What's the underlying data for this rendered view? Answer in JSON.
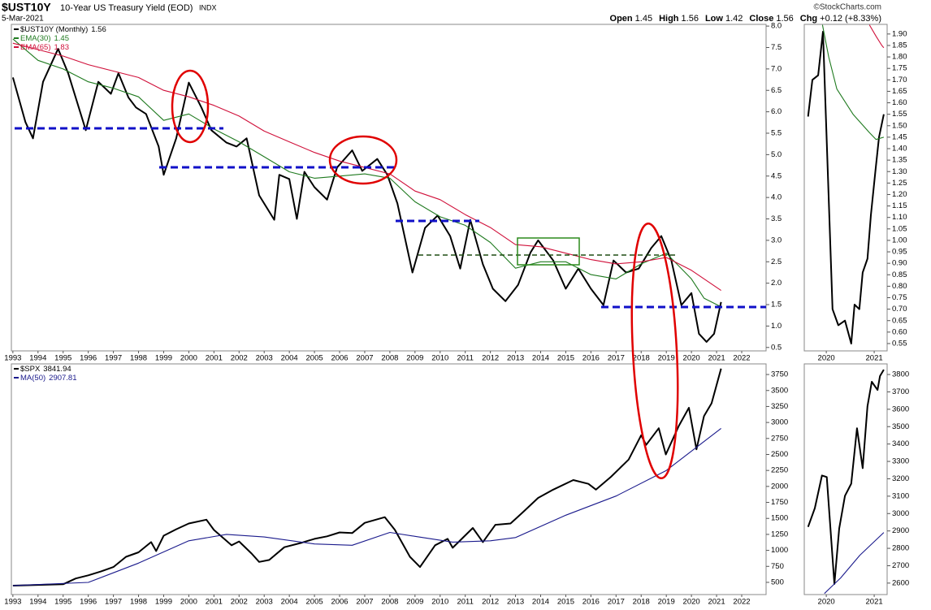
{
  "header": {
    "title": "$UST10Y",
    "subtitle": "10-Year US Treasury Yield (EOD)",
    "exchange": "INDX",
    "date": "5-Mar-2021",
    "credit": "©StockCharts.com",
    "quote": [
      {
        "label": "Open",
        "value": 1.45
      },
      {
        "label": "High",
        "value": 1.56
      },
      {
        "label": "Low",
        "value": 1.42
      },
      {
        "label": "Close",
        "value": 1.56
      },
      {
        "label": "Chg",
        "value": "+0.12 (+8.33%)"
      }
    ]
  },
  "chart_data": [
    {
      "type": "line",
      "xlim": [
        1992.94,
        2022.97
      ],
      "ylim": [
        0.42,
        8.04
      ],
      "xticks": [
        1993,
        1994,
        1995,
        1996,
        1997,
        1998,
        1999,
        2000,
        2001,
        2002,
        2003,
        2004,
        2005,
        2006,
        2007,
        2008,
        2009,
        2010,
        2011,
        2012,
        2013,
        2014,
        2015,
        2016,
        2017,
        2018,
        2019,
        2020,
        2021,
        2022
      ],
      "yticks": [
        0.5,
        {
          "value": 1,
          "label": "1.0"
        },
        1.5,
        {
          "value": 2,
          "label": "2.0"
        },
        2.5,
        {
          "value": 3,
          "label": "3.0"
        },
        3.5,
        {
          "value": 4,
          "label": "4.0"
        },
        4.5,
        {
          "value": 5,
          "label": "5.0"
        },
        5.5,
        {
          "value": 6,
          "label": "6.0"
        },
        6.5,
        {
          "value": 7,
          "label": "7.0"
        },
        7.5,
        {
          "value": 8,
          "label": "8.0"
        }
      ],
      "series": [
        {
          "name": "$UST10Y (Monthly)",
          "legend_value": 1.56,
          "color": "#000000",
          "x": [
            1993.0,
            1993.5,
            1993.8,
            1994.2,
            1994.8,
            1995.2,
            1995.9,
            1996.4,
            1996.9,
            1997.2,
            1997.6,
            1997.9,
            1998.3,
            1998.8,
            1999.0,
            1999.5,
            2000.0,
            2000.5,
            2000.9,
            2001.5,
            2001.9,
            2002.3,
            2002.8,
            2003.4,
            2003.6,
            2004.0,
            2004.3,
            2004.6,
            2005.0,
            2005.5,
            2005.9,
            2006.5,
            2006.9,
            2007.5,
            2007.9,
            2008.3,
            2008.9,
            2009.4,
            2009.9,
            2010.4,
            2010.8,
            2011.2,
            2011.7,
            2012.1,
            2012.6,
            2013.1,
            2013.6,
            2013.9,
            2014.5,
            2015.0,
            2015.5,
            2016.0,
            2016.5,
            2016.9,
            2017.4,
            2017.9,
            2018.4,
            2018.8,
            2019.2,
            2019.6,
            2020.0,
            2020.3,
            2020.6,
            2020.9,
            2021.18
          ],
          "values": [
            6.8,
            5.76,
            5.38,
            6.7,
            7.47,
            6.9,
            5.57,
            6.7,
            6.42,
            6.9,
            6.33,
            6.1,
            5.95,
            5.19,
            4.53,
            5.38,
            6.68,
            6.1,
            5.57,
            5.28,
            5.19,
            5.38,
            4.05,
            3.48,
            4.53,
            4.43,
            3.5,
            4.6,
            4.24,
            3.95,
            4.7,
            5.1,
            4.62,
            4.9,
            4.53,
            3.86,
            2.25,
            3.29,
            3.58,
            3.1,
            2.34,
            3.48,
            2.44,
            1.87,
            1.58,
            1.96,
            2.72,
            3.0,
            2.53,
            1.87,
            2.34,
            1.87,
            1.49,
            2.53,
            2.25,
            2.34,
            2.82,
            3.1,
            2.53,
            1.49,
            1.77,
            0.82,
            0.63,
            0.82,
            1.56
          ]
        },
        {
          "name": "EMA(30)",
          "legend_value": 1.45,
          "color": "#1f7a1f",
          "x": [
            1993,
            1994,
            1995,
            1996,
            1997,
            1998,
            1999,
            2000,
            2001,
            2002,
            2003,
            2004,
            2005,
            2006,
            2007,
            2008,
            2009,
            2010,
            2011,
            2012,
            2013,
            2014,
            2015,
            2016,
            2017,
            2018,
            2019,
            2020,
            2020.5,
            2021.18
          ],
          "values": [
            7.7,
            7.2,
            7.0,
            6.7,
            6.55,
            6.35,
            5.8,
            5.95,
            5.6,
            5.3,
            4.95,
            4.6,
            4.45,
            4.5,
            4.55,
            4.45,
            3.9,
            3.55,
            3.35,
            2.95,
            2.35,
            2.5,
            2.5,
            2.2,
            2.1,
            2.45,
            2.7,
            2.1,
            1.65,
            1.45
          ]
        },
        {
          "name": "EMA(65)",
          "legend_value": 1.83,
          "color": "#d0103a",
          "x": [
            1993,
            1994,
            1995,
            1996,
            1997,
            1998,
            1999,
            2000,
            2001,
            2002,
            2003,
            2004,
            2005,
            2006,
            2007,
            2008,
            2009,
            2010,
            2011,
            2012,
            2013,
            2014,
            2015,
            2016,
            2017,
            2018,
            2019,
            2020,
            2021.18
          ],
          "values": [
            7.6,
            7.45,
            7.3,
            7.1,
            6.95,
            6.8,
            6.5,
            6.35,
            6.15,
            5.9,
            5.55,
            5.3,
            5.05,
            4.85,
            4.7,
            4.55,
            4.15,
            3.95,
            3.6,
            3.3,
            2.9,
            2.85,
            2.7,
            2.55,
            2.45,
            2.5,
            2.6,
            2.3,
            1.83
          ]
        }
      ]
    },
    {
      "type": "line",
      "xlim": [
        1992.94,
        2022.97
      ],
      "ylim": [
        309,
        3916
      ],
      "xticks": [
        1993,
        1994,
        1995,
        1996,
        1997,
        1998,
        1999,
        2000,
        2001,
        2002,
        2003,
        2004,
        2005,
        2006,
        2007,
        2008,
        2009,
        2010,
        2011,
        2012,
        2013,
        2014,
        2015,
        2016,
        2017,
        2018,
        2019,
        2020,
        2021,
        2022
      ],
      "yticks": [
        500,
        750,
        1000,
        1250,
        1500,
        1750,
        2000,
        2250,
        2500,
        2750,
        3000,
        3250,
        3500,
        3750
      ],
      "series": [
        {
          "name": "$SPX",
          "legend_value": 3841.94,
          "color": "#000000",
          "x": [
            1993,
            1994,
            1995,
            1995.5,
            1996,
            1996.5,
            1997,
            1997.5,
            1998,
            1998.5,
            1998.7,
            1999,
            1999.5,
            2000,
            2000.7,
            2001,
            2001.7,
            2002,
            2002.5,
            2002.8,
            2003.2,
            2003.8,
            2004.5,
            2005,
            2005.5,
            2006,
            2006.5,
            2007,
            2007.8,
            2008.2,
            2008.8,
            2009.2,
            2009.8,
            2010.3,
            2010.5,
            2011.3,
            2011.7,
            2012.2,
            2012.8,
            2013.3,
            2013.9,
            2014.5,
            2015.3,
            2015.9,
            2016.2,
            2016.8,
            2017.5,
            2018,
            2018.2,
            2018.7,
            2018.98,
            2019.5,
            2019.9,
            2020.2,
            2020.5,
            2020.8,
            2021.18
          ],
          "values": [
            449,
            460,
            470,
            560,
            610,
            670,
            740,
            900,
            970,
            1130,
            990,
            1230,
            1330,
            1420,
            1480,
            1320,
            1080,
            1140,
            950,
            820,
            850,
            1050,
            1120,
            1180,
            1220,
            1280,
            1270,
            1430,
            1520,
            1320,
            900,
            740,
            1080,
            1180,
            1040,
            1350,
            1130,
            1400,
            1420,
            1600,
            1820,
            1950,
            2100,
            2040,
            1950,
            2150,
            2420,
            2800,
            2650,
            2910,
            2500,
            2950,
            3230,
            2580,
            3100,
            3300,
            3841.94
          ]
        },
        {
          "name": "MA(50)",
          "legend_value": 2907.81,
          "color": "#1a1a8c",
          "x": [
            1993,
            1996,
            1998,
            2000,
            2001.5,
            2003,
            2005,
            2006.5,
            2008,
            2009,
            2010.5,
            2012,
            2013,
            2015,
            2017,
            2019,
            2021.18
          ],
          "values": [
            450,
            500,
            800,
            1150,
            1250,
            1210,
            1100,
            1080,
            1280,
            1220,
            1130,
            1150,
            1200,
            1550,
            1850,
            2250,
            2907.81
          ]
        }
      ]
    },
    {
      "type": "line",
      "xlim": [
        2019.54,
        2021.27
      ],
      "ylim": [
        0.518,
        1.942
      ],
      "xticks": [
        2020,
        2021
      ],
      "yticks": [
        0.55,
        {
          "value": 0.6,
          "label": "0.60"
        },
        0.65,
        {
          "value": 0.7,
          "label": "0.70"
        },
        0.75,
        {
          "value": 0.8,
          "label": "0.80"
        },
        0.85,
        {
          "value": 0.9,
          "label": "0.90"
        },
        0.95,
        {
          "value": 1,
          "label": "1.00"
        },
        1.05,
        {
          "value": 1.1,
          "label": "1.10"
        },
        1.15,
        {
          "value": 1.2,
          "label": "1.20"
        },
        1.25,
        {
          "value": 1.3,
          "label": "1.30"
        },
        1.35,
        {
          "value": 1.4,
          "label": "1.40"
        },
        1.45,
        {
          "value": 1.5,
          "label": "1.50"
        },
        1.55,
        {
          "value": 1.6,
          "label": "1.60"
        },
        1.65,
        {
          "value": 1.7,
          "label": "1.70"
        },
        1.75,
        {
          "value": 1.8,
          "label": "1.80"
        },
        1.85,
        {
          "value": 1.9,
          "label": "1.90"
        }
      ],
      "series": [
        {
          "color": "#000000",
          "x": [
            2019.62,
            2019.71,
            2019.83,
            2019.93,
            2020.13,
            2020.25,
            2020.39,
            2020.52,
            2020.59,
            2020.69,
            2020.76,
            2020.86,
            2020.93,
            2021.03,
            2021.1,
            2021.2
          ],
          "values": [
            1.54,
            1.7,
            1.72,
            1.91,
            0.7,
            0.63,
            0.65,
            0.55,
            0.72,
            0.7,
            0.86,
            0.92,
            1.11,
            1.31,
            1.45,
            1.55
          ]
        },
        {
          "color": "#1f7a1f",
          "x": [
            2019.92,
            2020.05,
            2020.22,
            2020.56,
            2020.9,
            2021.04,
            2021.2
          ],
          "values": [
            1.94,
            1.8,
            1.66,
            1.55,
            1.47,
            1.44,
            1.45
          ]
        },
        {
          "color": "#d0103a",
          "x": [
            2020.9,
            2021.04,
            2021.16,
            2021.2
          ],
          "values": [
            1.94,
            1.89,
            1.85,
            1.84
          ]
        }
      ]
    },
    {
      "type": "line",
      "xlim": [
        2019.54,
        2021.27
      ],
      "ylim": [
        2534,
        3861
      ],
      "xticks": [
        2020,
        2021
      ],
      "yticks": [
        2600,
        2700,
        2800,
        2900,
        3000,
        3100,
        3200,
        3300,
        3400,
        3500,
        3600,
        3700,
        3800
      ],
      "series": [
        {
          "color": "#000000",
          "x": [
            2019.62,
            2019.76,
            2019.91,
            2020.01,
            2020.17,
            2020.27,
            2020.39,
            2020.52,
            2020.64,
            2020.76,
            2020.86,
            2020.95,
            2021.07,
            2021.12,
            2021.2
          ],
          "values": [
            2923,
            3031,
            3219,
            3210,
            2595,
            2914,
            3102,
            3172,
            3491,
            3261,
            3617,
            3758,
            3711,
            3791,
            3828
          ]
        },
        {
          "color": "#1a1a8c",
          "x": [
            2019.96,
            2020.3,
            2020.7,
            2021.2
          ],
          "values": [
            2540,
            2630,
            2760,
            2891
          ]
        }
      ]
    }
  ]
}
